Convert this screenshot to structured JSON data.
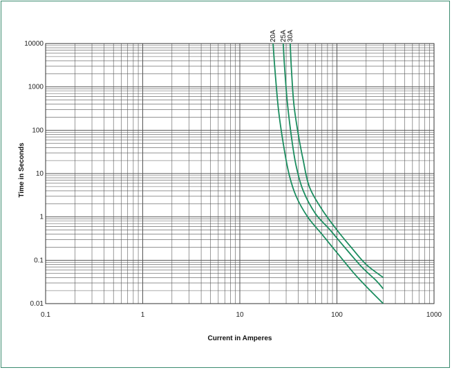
{
  "chart_data": {
    "type": "line",
    "title": "",
    "xlabel": "Current in Amperes",
    "ylabel": "Time in Seconds",
    "xscale": "log",
    "yscale": "log",
    "xlim": [
      0.1,
      1000
    ],
    "ylim": [
      0.01,
      10000
    ],
    "x_ticks": [
      "0.1",
      "1",
      "10",
      "100",
      "1000"
    ],
    "y_ticks": [
      "0.01",
      "0.1",
      "1",
      "10",
      "100",
      "1000",
      "10000"
    ],
    "grid": true,
    "legend": "none",
    "colors": {
      "line": "#1a8c5e",
      "grid": "#555555",
      "frame": "#3a8a6e"
    },
    "series": [
      {
        "name": "20A",
        "points": [
          [
            22,
            10000
          ],
          [
            23,
            2500
          ],
          [
            25,
            300
          ],
          [
            28,
            50
          ],
          [
            32,
            10
          ],
          [
            38,
            3
          ],
          [
            50,
            1
          ],
          [
            70,
            0.4
          ],
          [
            100,
            0.15
          ],
          [
            150,
            0.05
          ],
          [
            200,
            0.025
          ],
          [
            300,
            0.01
          ]
        ]
      },
      {
        "name": "25A",
        "points": [
          [
            28,
            10000
          ],
          [
            29,
            2500
          ],
          [
            31,
            400
          ],
          [
            34,
            70
          ],
          [
            38,
            15
          ],
          [
            45,
            4
          ],
          [
            60,
            1.2
          ],
          [
            85,
            0.5
          ],
          [
            120,
            0.2
          ],
          [
            180,
            0.07
          ],
          [
            250,
            0.035
          ],
          [
            300,
            0.022
          ]
        ]
      },
      {
        "name": "30A",
        "points": [
          [
            33,
            10000
          ],
          [
            34,
            2500
          ],
          [
            36,
            400
          ],
          [
            40,
            80
          ],
          [
            45,
            20
          ],
          [
            52,
            5
          ],
          [
            70,
            1.5
          ],
          [
            100,
            0.5
          ],
          [
            140,
            0.2
          ],
          [
            200,
            0.08
          ],
          [
            300,
            0.04
          ]
        ]
      }
    ]
  }
}
